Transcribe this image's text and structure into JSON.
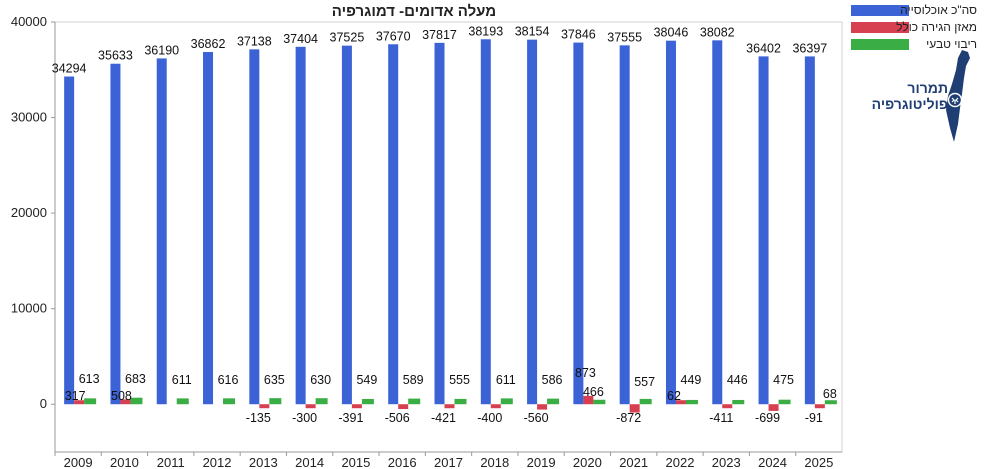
{
  "chart_data": {
    "type": "bar",
    "title": "מעלה אדומים- דמוגרפיה",
    "categories": [
      "2009",
      "2010",
      "2011",
      "2012",
      "2013",
      "2014",
      "2015",
      "2016",
      "2017",
      "2018",
      "2019",
      "2020",
      "2021",
      "2022",
      "2023",
      "2024",
      "2025"
    ],
    "series": [
      {
        "name": "סה\"כ אוכלוסייה",
        "color": "#3b63d6",
        "values": [
          34294,
          35633,
          36190,
          36862,
          37138,
          37404,
          37525,
          37670,
          37817,
          38193,
          38154,
          37846,
          37555,
          38046,
          38082,
          36402,
          36397
        ],
        "labels": [
          "34294",
          "35633",
          "36190",
          "36862",
          "37138",
          "37404",
          "37525",
          "37670",
          "37817",
          "38193",
          "38154",
          "37846",
          "37555",
          "38046",
          "38082",
          "36402",
          "36397"
        ]
      },
      {
        "name": "מאזן הגירה כולל",
        "color": "#d64050",
        "values": [
          317,
          508,
          null,
          null,
          -135,
          -300,
          -391,
          -506,
          -421,
          -400,
          -560,
          873,
          -872,
          62,
          -411,
          -699,
          -91
        ],
        "labels": [
          "317",
          "508",
          "",
          "",
          "-135",
          "-300",
          "-391",
          "-506",
          "-421",
          "-400",
          "-560",
          "873",
          "-872",
          "62",
          "-411",
          "-699",
          "-91"
        ]
      },
      {
        "name": "ריבוי טבעי",
        "color": "#3aad45",
        "values": [
          613,
          683,
          611,
          616,
          635,
          630,
          549,
          589,
          555,
          611,
          586,
          466,
          557,
          449,
          446,
          475,
          68
        ],
        "labels": [
          "613",
          "683",
          "611",
          "616",
          "635",
          "630",
          "549",
          "589",
          "555",
          "611",
          "586",
          "466",
          "557",
          "449",
          "446",
          "475",
          "68"
        ]
      }
    ],
    "y_axis": {
      "min": -5000,
      "max": 40000,
      "ticks": [
        "40000",
        "30000",
        "20000",
        "10000",
        "0"
      ],
      "tick_values": [
        40000,
        30000,
        20000,
        10000,
        0
      ]
    },
    "grid": false,
    "legend_position": "top-right"
  },
  "logo": {
    "line1": "תמרור",
    "line2": "פוליטוגרפיה"
  }
}
